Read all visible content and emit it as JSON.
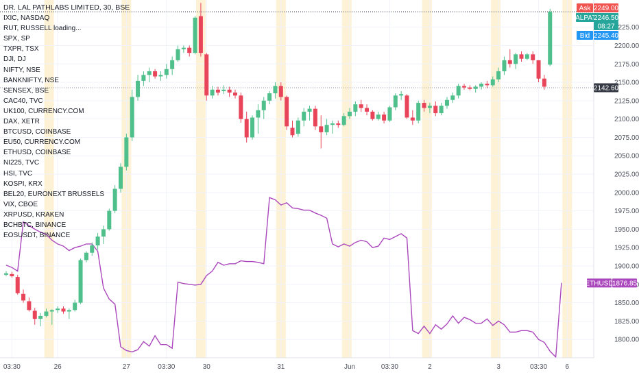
{
  "chart_title": "DR. LAL PATHLABS LIMITED, 30, BSE",
  "watchlist": [
    "IXIC, NASDAQ",
    "RUT, RUSSELL loading...",
    "SPX, SP",
    "TXPR, TSX",
    "DJI, DJ",
    "NIFTY, NSE",
    "BANKNIFTY, NSE",
    "SENSEX, BSE",
    "CAC40, TVC",
    "UK100, CURRENCY.COM",
    "DAX, XETR",
    "BTCUSD, COINBASE",
    "EU50, CURRENCY.COM",
    "ETHUSD, COINBASE",
    "NI225, TVC",
    "HSI, TVC",
    "KOSPI, KRX",
    "BEL20, EURONEXT BRUSSELS",
    "VIX, CBOE",
    "XRPUSD, KRAKEN",
    "BCHBTC, BINANCE",
    "EOSUSDT, BINANCE"
  ],
  "colors": {
    "up": "#26a69a",
    "up_body": "#4fbf8b",
    "down": "#e8455a",
    "overlay": "#ab47bc",
    "session_band": "#fdf1d6",
    "grid": "#f0f3fa",
    "ask": "#ef5350",
    "bid": "#2196f3",
    "symbol_tag": "#26a69a",
    "last_price": "#363a45"
  },
  "badges": {
    "ask_label": "Ask",
    "ask_value": "2249.00",
    "symbol_label": "LALPATHLAB",
    "symbol_value": "2246.50",
    "countdown": "08:27",
    "bid_label": "Bid",
    "bid_value": "2245.40",
    "last_value": "2142.60",
    "overlay_label": "ETHUSD",
    "overlay_value": "1876.85"
  },
  "chart_data": {
    "type": "candlestick",
    "y_axis": {
      "position": "right",
      "ylim": [
        1775,
        2262
      ],
      "ticks": [
        1800,
        1825,
        1850,
        1875,
        1900,
        1925,
        1950,
        1975,
        2000,
        2025,
        2050,
        2075,
        2100,
        2125,
        2150,
        2175,
        2200,
        2225
      ]
    },
    "x_axis": {
      "labels": [
        "03:30",
        "26",
        "27",
        "03:30",
        "30",
        "31",
        "Jun",
        "03:30",
        "2",
        "3",
        "03:30",
        "6"
      ],
      "label_bars": [
        1,
        9,
        21,
        28,
        35,
        48,
        60,
        67,
        74,
        86,
        93,
        98
      ]
    },
    "session_bars": [
      7.5,
      21,
      34,
      48,
      59.5,
      73.5,
      85.5,
      98
    ],
    "series": [
      {
        "name": "LALPATHLAB",
        "ohlc": [
          [
            1888,
            1893,
            1886,
            1890
          ],
          [
            1889,
            1892,
            1884,
            1886
          ],
          [
            1885,
            1888,
            1861,
            1863
          ],
          [
            1862,
            1868,
            1850,
            1853
          ],
          [
            1852,
            1857,
            1838,
            1840
          ],
          [
            1839,
            1843,
            1820,
            1828
          ],
          [
            1828,
            1836,
            1818,
            1832
          ],
          [
            1832,
            1842,
            1830,
            1838
          ],
          [
            1838,
            1841,
            1820,
            1840
          ],
          [
            1840,
            1845,
            1836,
            1842
          ],
          [
            1842,
            1845,
            1835,
            1838
          ],
          [
            1838,
            1842,
            1828,
            1840
          ],
          [
            1840,
            1854,
            1838,
            1850
          ],
          [
            1850,
            1910,
            1848,
            1908
          ],
          [
            1908,
            1920,
            1905,
            1918
          ],
          [
            1918,
            1932,
            1914,
            1928
          ],
          [
            1928,
            1945,
            1922,
            1940
          ],
          [
            1940,
            1955,
            1930,
            1950
          ],
          [
            1950,
            1978,
            1948,
            1975
          ],
          [
            1975,
            2010,
            1972,
            2005
          ],
          [
            2005,
            2040,
            2000,
            2035
          ],
          [
            2035,
            2080,
            2030,
            2075
          ],
          [
            2075,
            2140,
            2070,
            2130
          ],
          [
            2130,
            2160,
            2125,
            2152
          ],
          [
            2152,
            2165,
            2145,
            2160
          ],
          [
            2160,
            2170,
            2150,
            2165
          ],
          [
            2165,
            2168,
            2155,
            2158
          ],
          [
            2158,
            2165,
            2152,
            2160
          ],
          [
            2160,
            2175,
            2155,
            2168
          ],
          [
            2168,
            2185,
            2160,
            2180
          ],
          [
            2180,
            2200,
            2178,
            2195
          ],
          [
            2195,
            2200,
            2190,
            2197
          ],
          [
            2197,
            2200,
            2185,
            2190
          ],
          [
            2190,
            2240,
            2188,
            2238
          ],
          [
            2240,
            2258,
            2185,
            2190
          ],
          [
            2188,
            2190,
            2125,
            2132
          ],
          [
            2132,
            2145,
            2128,
            2140
          ],
          [
            2140,
            2144,
            2132,
            2136
          ],
          [
            2138,
            2146,
            2134,
            2140
          ],
          [
            2140,
            2144,
            2130,
            2136
          ],
          [
            2136,
            2140,
            2128,
            2132
          ],
          [
            2132,
            2136,
            2095,
            2100
          ],
          [
            2100,
            2110,
            2068,
            2075
          ],
          [
            2075,
            2105,
            2072,
            2102
          ],
          [
            2102,
            2120,
            2080,
            2112
          ],
          [
            2112,
            2130,
            2100,
            2125
          ],
          [
            2125,
            2138,
            2120,
            2135
          ],
          [
            2135,
            2150,
            2128,
            2145
          ],
          [
            2145,
            2150,
            2125,
            2130
          ],
          [
            2130,
            2132,
            2085,
            2090
          ],
          [
            2088,
            2098,
            2075,
            2078
          ],
          [
            2080,
            2102,
            2076,
            2098
          ],
          [
            2098,
            2115,
            2090,
            2110
          ],
          [
            2110,
            2118,
            2098,
            2114
          ],
          [
            2114,
            2118,
            2085,
            2090
          ],
          [
            2090,
            2105,
            2060,
            2082
          ],
          [
            2082,
            2100,
            2078,
            2092
          ],
          [
            2092,
            2098,
            2080,
            2094
          ],
          [
            2094,
            2098,
            2088,
            2092
          ],
          [
            2092,
            2108,
            2090,
            2104
          ],
          [
            2104,
            2115,
            2100,
            2110
          ],
          [
            2110,
            2124,
            2104,
            2120
          ],
          [
            2120,
            2126,
            2110,
            2115
          ],
          [
            2115,
            2120,
            2105,
            2110
          ],
          [
            2110,
            2112,
            2098,
            2100
          ],
          [
            2100,
            2110,
            2098,
            2106
          ],
          [
            2106,
            2110,
            2094,
            2098
          ],
          [
            2098,
            2118,
            2096,
            2116
          ],
          [
            2116,
            2135,
            2112,
            2132
          ],
          [
            2132,
            2138,
            2126,
            2134
          ],
          [
            2132,
            2134,
            2100,
            2102
          ],
          [
            2102,
            2112,
            2092,
            2098
          ],
          [
            2098,
            2125,
            2094,
            2122
          ],
          [
            2122,
            2126,
            2110,
            2115
          ],
          [
            2115,
            2122,
            2108,
            2118
          ],
          [
            2118,
            2124,
            2104,
            2108
          ],
          [
            2108,
            2122,
            2105,
            2118
          ],
          [
            2118,
            2130,
            2114,
            2126
          ],
          [
            2126,
            2136,
            2122,
            2132
          ],
          [
            2132,
            2148,
            2128,
            2145
          ],
          [
            2145,
            2148,
            2140,
            2143
          ],
          [
            2143,
            2146,
            2139,
            2141
          ],
          [
            2141,
            2146,
            2136,
            2144
          ],
          [
            2144,
            2150,
            2140,
            2148
          ],
          [
            2148,
            2152,
            2142,
            2146
          ],
          [
            2146,
            2158,
            2144,
            2154
          ],
          [
            2154,
            2170,
            2150,
            2165
          ],
          [
            2165,
            2185,
            2160,
            2180
          ],
          [
            2180,
            2195,
            2170,
            2175
          ],
          [
            2175,
            2190,
            2168,
            2188
          ],
          [
            2188,
            2192,
            2178,
            2182
          ],
          [
            2182,
            2190,
            2180,
            2188
          ],
          [
            2188,
            2192,
            2175,
            2180
          ],
          [
            2180,
            2180,
            2150,
            2155
          ],
          [
            2155,
            2160,
            2140,
            2144
          ],
          [
            2174,
            2250,
            2172,
            2246
          ]
        ]
      },
      {
        "name": "ETHUSD",
        "y": [
          1901,
          1898,
          1893,
          1960,
          1955,
          1950,
          1946,
          1943,
          1935,
          1930,
          1927,
          1921,
          1925,
          1927,
          1930,
          1930,
          1920,
          1870,
          1855,
          1848,
          1790,
          1785,
          1783,
          1786,
          1797,
          1791,
          1805,
          1793,
          1793,
          1788,
          1878,
          1876,
          1875,
          1874,
          1875,
          1887,
          1893,
          1905,
          1901,
          1903,
          1903,
          1907,
          1906,
          1906,
          1905,
          1903,
          1993,
          1990,
          1983,
          1986,
          1979,
          1978,
          1976,
          1976,
          1972,
          1969,
          1965,
          1930,
          1926,
          1930,
          1927,
          1932,
          1935,
          1933,
          1925,
          1927,
          1938,
          1936,
          1940,
          1944,
          1938,
          1812,
          1808,
          1818,
          1808,
          1820,
          1814,
          1821,
          1832,
          1822,
          1830,
          1827,
          1822,
          1822,
          1828,
          1819,
          1825,
          1820,
          1810,
          1810,
          1812,
          1812,
          1810,
          1800,
          1796,
          1784,
          1776,
          1877
        ]
      }
    ]
  }
}
